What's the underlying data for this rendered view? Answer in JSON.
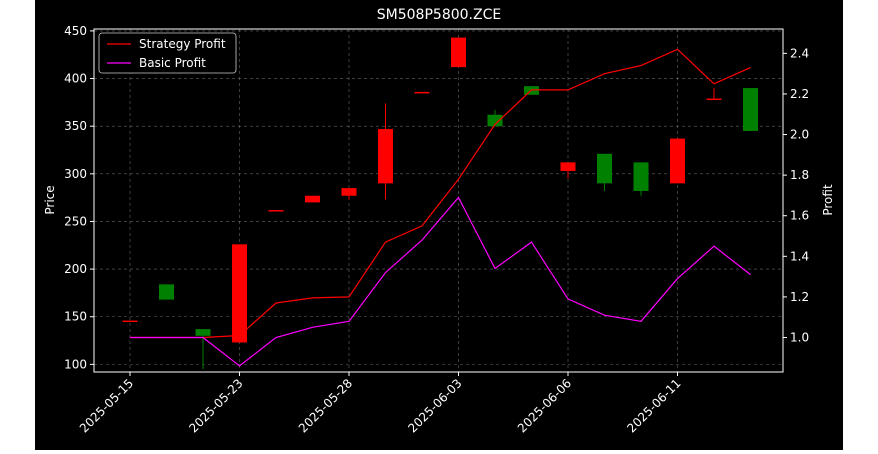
{
  "chart_data": {
    "type": "candlestick",
    "title": "SM508P5800.ZCE",
    "ylabel": "Price",
    "y2label": "Profit",
    "ylim": [
      92,
      452
    ],
    "y2lim": [
      0.83,
      2.52
    ],
    "yticks": [
      100,
      150,
      200,
      250,
      300,
      350,
      400,
      450
    ],
    "y2ticks": [
      "1.0",
      "1.2",
      "1.4",
      "1.6",
      "1.8",
      "2.0",
      "2.2",
      "2.4"
    ],
    "y2tick_values": [
      1.0,
      1.2,
      1.4,
      1.6,
      1.8,
      2.0,
      2.2,
      2.4
    ],
    "x_tick_labels": [
      {
        "index": 0,
        "label": "2025-05-15"
      },
      {
        "index": 3,
        "label": "2025-05-23"
      },
      {
        "index": 6,
        "label": "2025-05-28"
      },
      {
        "index": 9,
        "label": "2025-06-03"
      },
      {
        "index": 12,
        "label": "2025-06-06"
      },
      {
        "index": 15,
        "label": "2025-06-11"
      }
    ],
    "grid": true,
    "legend_position": "top-left",
    "colors": {
      "background": "#000000",
      "up": "#ff0000",
      "down": "#008000",
      "strategy": "#ff0000",
      "basic": "#ff00ff",
      "text": "#ffffff",
      "grid": "#808080"
    },
    "candles": [
      {
        "open": 146,
        "close": 146,
        "high": 146,
        "low": 146
      },
      {
        "open": 184,
        "close": 168,
        "high": 184,
        "low": 168
      },
      {
        "open": 137,
        "close": 130,
        "high": 137,
        "low": 95
      },
      {
        "open": 123,
        "close": 226,
        "high": 226,
        "low": 123
      },
      {
        "open": 262,
        "close": 262,
        "high": 262,
        "low": 262
      },
      {
        "open": 270,
        "close": 277,
        "high": 277,
        "low": 270
      },
      {
        "open": 277,
        "close": 285,
        "high": 285,
        "low": 273
      },
      {
        "open": 290,
        "close": 347,
        "high": 374,
        "low": 273
      },
      {
        "open": 386,
        "close": 386,
        "high": 386,
        "low": 386
      },
      {
        "open": 412,
        "close": 443,
        "high": 443,
        "low": 412
      },
      {
        "open": 362,
        "close": 350,
        "high": 367,
        "low": 350
      },
      {
        "open": 392,
        "close": 383,
        "high": 392,
        "low": 383
      },
      {
        "open": 303,
        "close": 312,
        "high": 312,
        "low": 295
      },
      {
        "open": 321,
        "close": 290,
        "high": 321,
        "low": 282
      },
      {
        "open": 312,
        "close": 282,
        "high": 312,
        "low": 277
      },
      {
        "open": 290,
        "close": 337,
        "high": 337,
        "low": 290
      },
      {
        "open": 379,
        "close": 379,
        "high": 390,
        "low": 379
      },
      {
        "open": 390,
        "close": 345,
        "high": 390,
        "low": 345
      }
    ],
    "series": [
      {
        "name": "Strategy Profit",
        "values": [
          1.0,
          1.0,
          1.0,
          1.01,
          1.17,
          1.195,
          1.2,
          1.47,
          1.55,
          1.78,
          2.05,
          2.22,
          2.22,
          2.3,
          2.34,
          2.42,
          2.25,
          2.33
        ]
      },
      {
        "name": "Basic Profit",
        "values": [
          1.0,
          1.0,
          1.0,
          0.86,
          1.0,
          1.05,
          1.08,
          1.32,
          1.48,
          1.69,
          1.34,
          1.47,
          1.19,
          1.11,
          1.08,
          1.29,
          1.45,
          1.31
        ]
      }
    ]
  }
}
